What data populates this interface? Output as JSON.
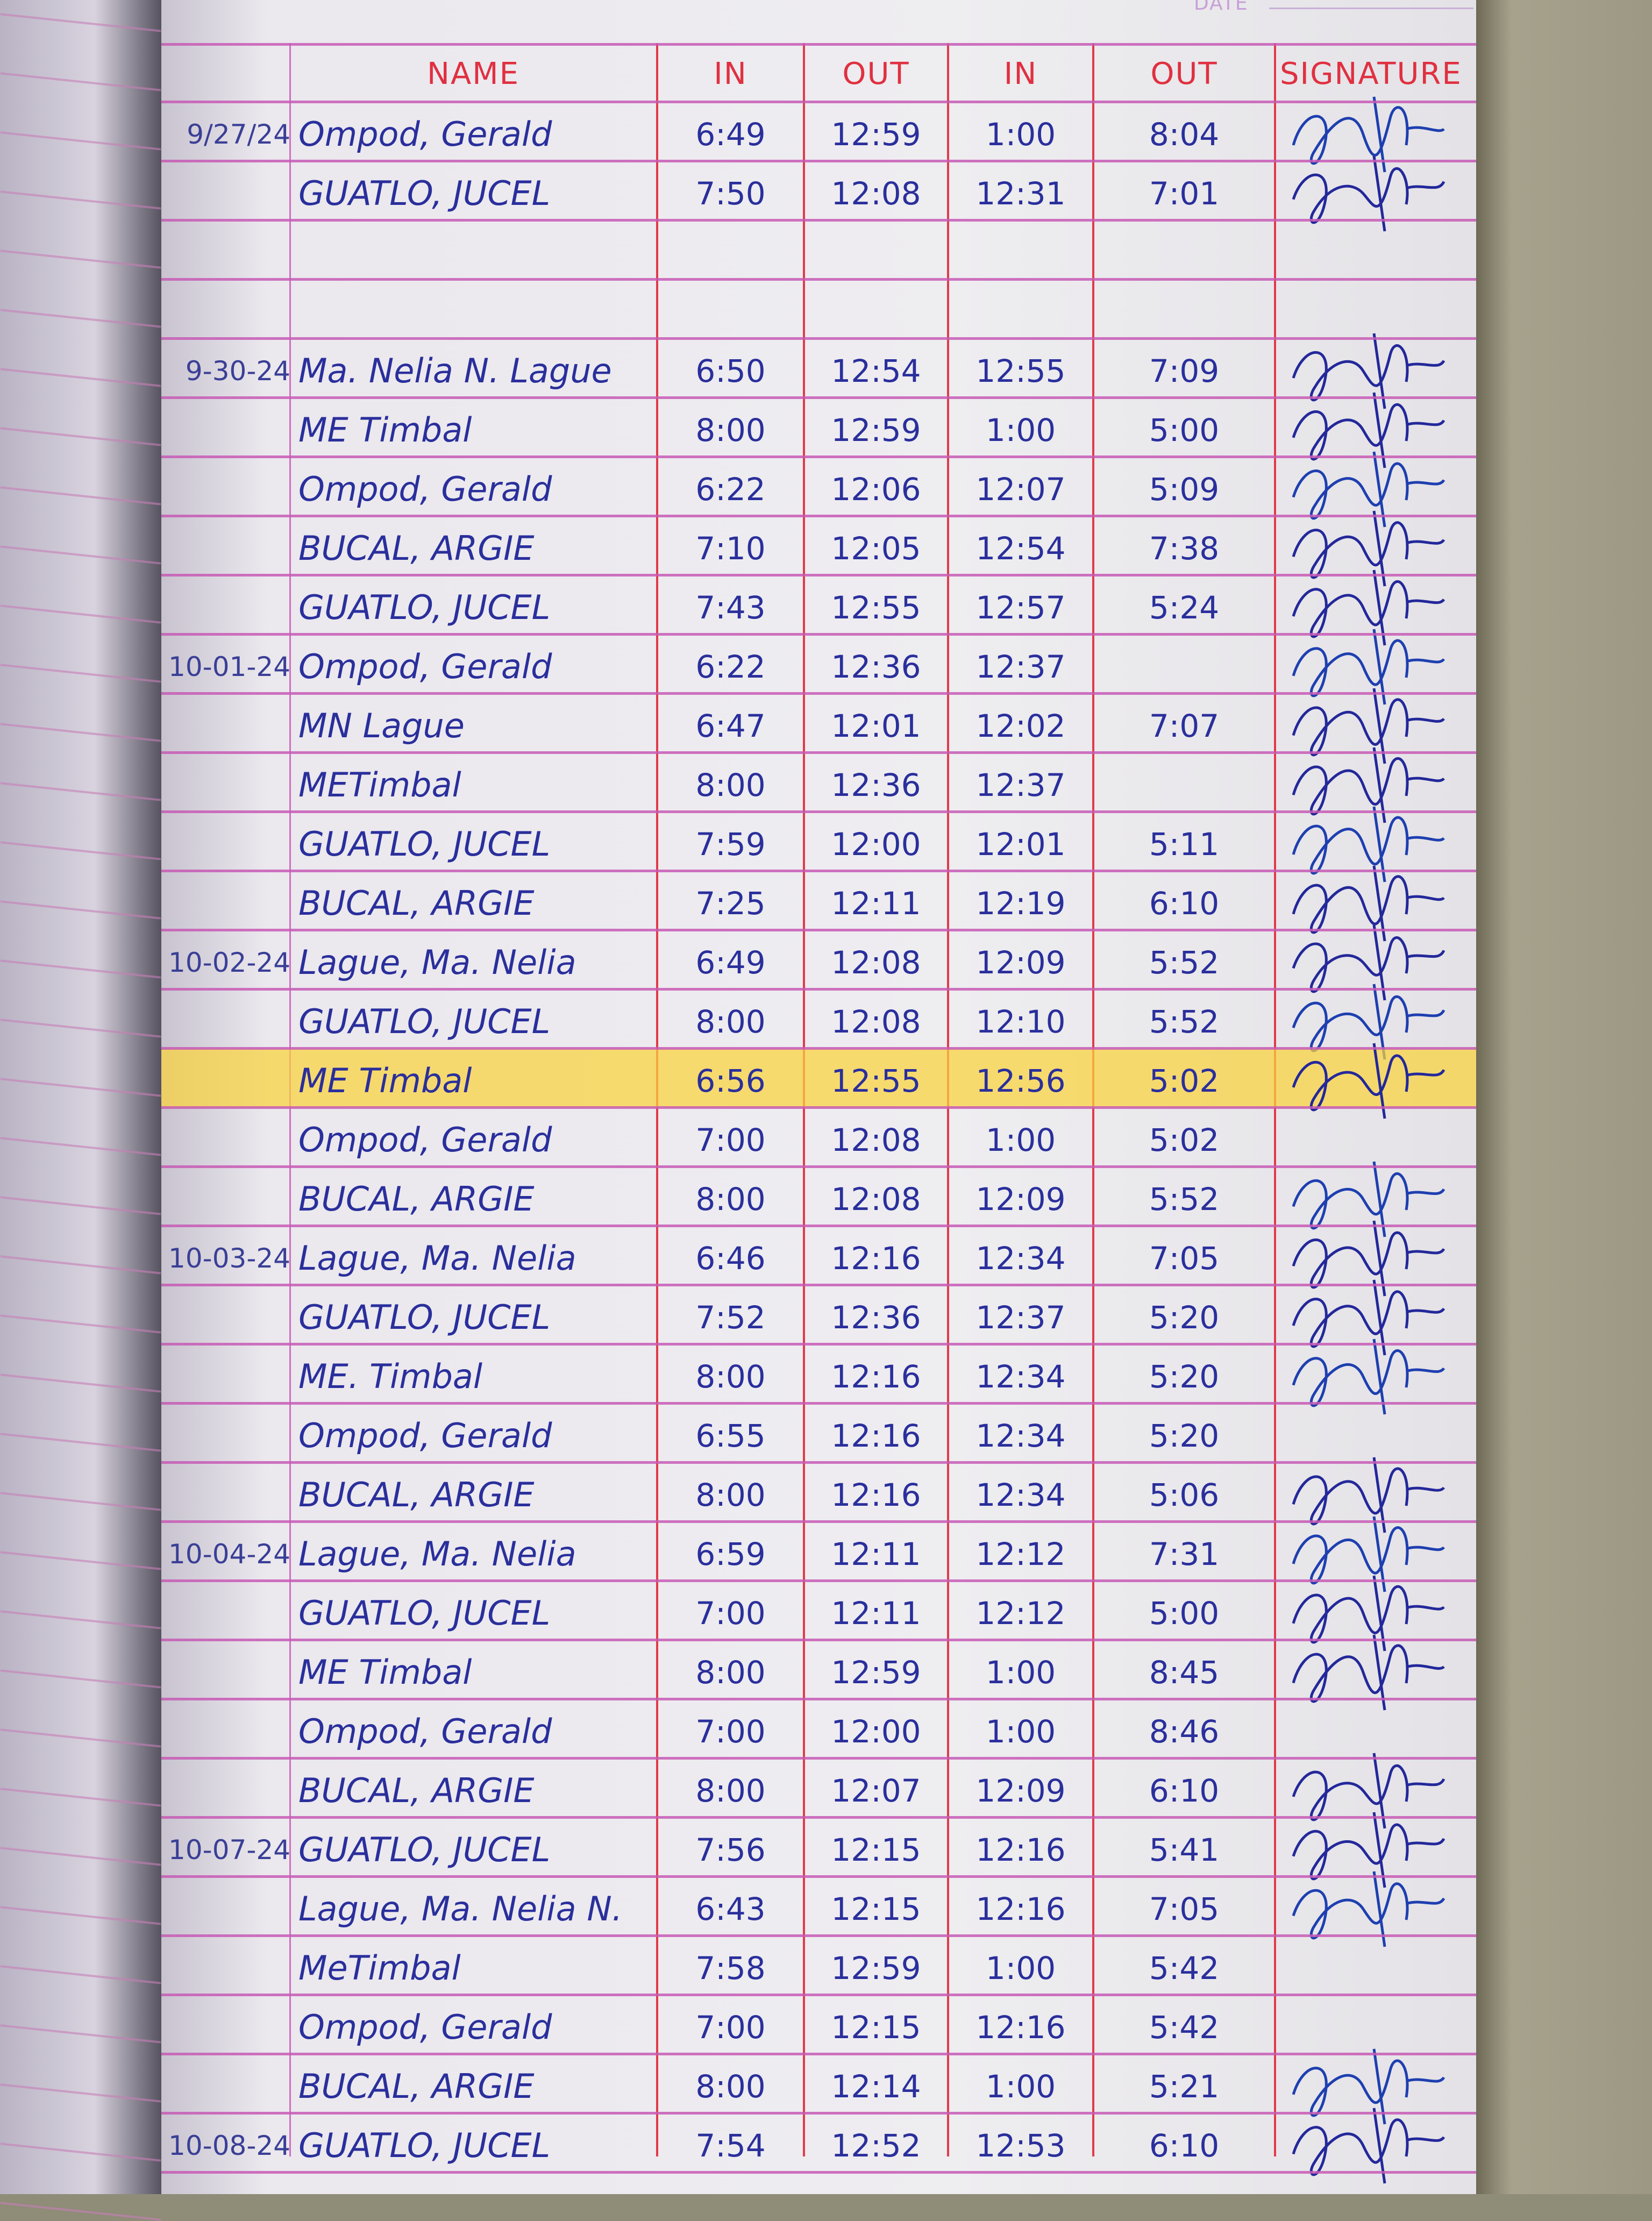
{
  "page": {
    "date_label": "DATE"
  },
  "headers": {
    "name": "NAME",
    "in1": "IN",
    "out1": "OUT",
    "in2": "IN",
    "out2": "OUT",
    "signature": "SIGNATURE"
  },
  "colors": {
    "ink": "#2a2f9c",
    "header_red": "#e03040",
    "rule_pink": "#c75bb5",
    "highlight": "#f5d23c"
  },
  "highlighted_row": 16,
  "rows": [
    {
      "date": "9/27/24",
      "name": "Ompod, Gerald",
      "in1": "6:49",
      "out1": "12:59",
      "in2": "1:00",
      "out2": "8:04",
      "signed": true
    },
    {
      "date": "",
      "name": "GUATLO, JUCEL",
      "in1": "7:50",
      "out1": "12:08",
      "in2": "12:31",
      "out2": "7:01",
      "signed": true
    },
    {
      "date": "",
      "name": "",
      "in1": "",
      "out1": "",
      "in2": "",
      "out2": "",
      "signed": false
    },
    {
      "date": "",
      "name": "",
      "in1": "",
      "out1": "",
      "in2": "",
      "out2": "",
      "signed": false
    },
    {
      "date": "9-30-24",
      "name": "Ma. Nelia N. Lague",
      "in1": "6:50",
      "out1": "12:54",
      "in2": "12:55",
      "out2": "7:09",
      "signed": true
    },
    {
      "date": "",
      "name": "ME Timbal",
      "in1": "8:00",
      "out1": "12:59",
      "in2": "1:00",
      "out2": "5:00",
      "signed": true
    },
    {
      "date": "",
      "name": "Ompod, Gerald",
      "in1": "6:22",
      "out1": "12:06",
      "in2": "12:07",
      "out2": "5:09",
      "signed": true
    },
    {
      "date": "",
      "name": "BUCAL, ARGIE",
      "in1": "7:10",
      "out1": "12:05",
      "in2": "12:54",
      "out2": "7:38",
      "signed": true
    },
    {
      "date": "",
      "name": "GUATLO, JUCEL",
      "in1": "7:43",
      "out1": "12:55",
      "in2": "12:57",
      "out2": "5:24",
      "signed": true
    },
    {
      "date": "10-01-24",
      "name": "Ompod, Gerald",
      "in1": "6:22",
      "out1": "12:36",
      "in2": "12:37",
      "out2": "",
      "signed": true
    },
    {
      "date": "",
      "name": "MN Lague",
      "in1": "6:47",
      "out1": "12:01",
      "in2": "12:02",
      "out2": "7:07",
      "signed": true
    },
    {
      "date": "",
      "name": "METimbal",
      "in1": "8:00",
      "out1": "12:36",
      "in2": "12:37",
      "out2": "",
      "signed": true
    },
    {
      "date": "",
      "name": "GUATLO, JUCEL",
      "in1": "7:59",
      "out1": "12:00",
      "in2": "12:01",
      "out2": "5:11",
      "signed": true
    },
    {
      "date": "",
      "name": "BUCAL, ARGIE",
      "in1": "7:25",
      "out1": "12:11",
      "in2": "12:19",
      "out2": "6:10",
      "signed": true
    },
    {
      "date": "10-02-24",
      "name": "Lague, Ma. Nelia",
      "in1": "6:49",
      "out1": "12:08",
      "in2": "12:09",
      "out2": "5:52",
      "signed": true
    },
    {
      "date": "",
      "name": "GUATLO, JUCEL",
      "in1": "8:00",
      "out1": "12:08",
      "in2": "12:10",
      "out2": "5:52",
      "signed": true
    },
    {
      "date": "",
      "name": "ME Timbal",
      "in1": "6:56",
      "out1": "12:55",
      "in2": "12:56",
      "out2": "5:02",
      "signed": true
    },
    {
      "date": "",
      "name": "Ompod, Gerald",
      "in1": "7:00",
      "out1": "12:08",
      "in2": "1:00",
      "out2": "5:02",
      "signed": false
    },
    {
      "date": "",
      "name": "BUCAL, ARGIE",
      "in1": "8:00",
      "out1": "12:08",
      "in2": "12:09",
      "out2": "5:52",
      "signed": true
    },
    {
      "date": "10-03-24",
      "name": "Lague, Ma. Nelia",
      "in1": "6:46",
      "out1": "12:16",
      "in2": "12:34",
      "out2": "7:05",
      "signed": true
    },
    {
      "date": "",
      "name": "GUATLO, JUCEL",
      "in1": "7:52",
      "out1": "12:36",
      "in2": "12:37",
      "out2": "5:20",
      "signed": true
    },
    {
      "date": "",
      "name": "ME. Timbal",
      "in1": "8:00",
      "out1": "12:16",
      "in2": "12:34",
      "out2": "5:20",
      "signed": true
    },
    {
      "date": "",
      "name": "Ompod, Gerald",
      "in1": "6:55",
      "out1": "12:16",
      "in2": "12:34",
      "out2": "5:20",
      "signed": false
    },
    {
      "date": "",
      "name": "BUCAL, ARGIE",
      "in1": "8:00",
      "out1": "12:16",
      "in2": "12:34",
      "out2": "5:06",
      "signed": true
    },
    {
      "date": "10-04-24",
      "name": "Lague, Ma. Nelia",
      "in1": "6:59",
      "out1": "12:11",
      "in2": "12:12",
      "out2": "7:31",
      "signed": true
    },
    {
      "date": "",
      "name": "GUATLO, JUCEL",
      "in1": "7:00",
      "out1": "12:11",
      "in2": "12:12",
      "out2": "5:00",
      "signed": true
    },
    {
      "date": "",
      "name": "ME Timbal",
      "in1": "8:00",
      "out1": "12:59",
      "in2": "1:00",
      "out2": "8:45",
      "signed": true
    },
    {
      "date": "",
      "name": "Ompod, Gerald",
      "in1": "7:00",
      "out1": "12:00",
      "in2": "1:00",
      "out2": "8:46",
      "signed": false
    },
    {
      "date": "",
      "name": "BUCAL, ARGIE",
      "in1": "8:00",
      "out1": "12:07",
      "in2": "12:09",
      "out2": "6:10",
      "signed": true
    },
    {
      "date": "10-07-24",
      "name": "GUATLO, JUCEL",
      "in1": "7:56",
      "out1": "12:15",
      "in2": "12:16",
      "out2": "5:41",
      "signed": true
    },
    {
      "date": "",
      "name": "Lague, Ma. Nelia N.",
      "in1": "6:43",
      "out1": "12:15",
      "in2": "12:16",
      "out2": "7:05",
      "signed": true
    },
    {
      "date": "",
      "name": "MeTimbal",
      "in1": "7:58",
      "out1": "12:59",
      "in2": "1:00",
      "out2": "5:42",
      "signed": false
    },
    {
      "date": "",
      "name": "Ompod, Gerald",
      "in1": "7:00",
      "out1": "12:15",
      "in2": "12:16",
      "out2": "5:42",
      "signed": false
    },
    {
      "date": "",
      "name": "BUCAL, ARGIE",
      "in1": "8:00",
      "out1": "12:14",
      "in2": "1:00",
      "out2": "5:21",
      "signed": true
    },
    {
      "date": "10-08-24",
      "name": "GUATLO, JUCEL",
      "in1": "7:54",
      "out1": "12:52",
      "in2": "12:53",
      "out2": "6:10",
      "signed": true
    }
  ]
}
